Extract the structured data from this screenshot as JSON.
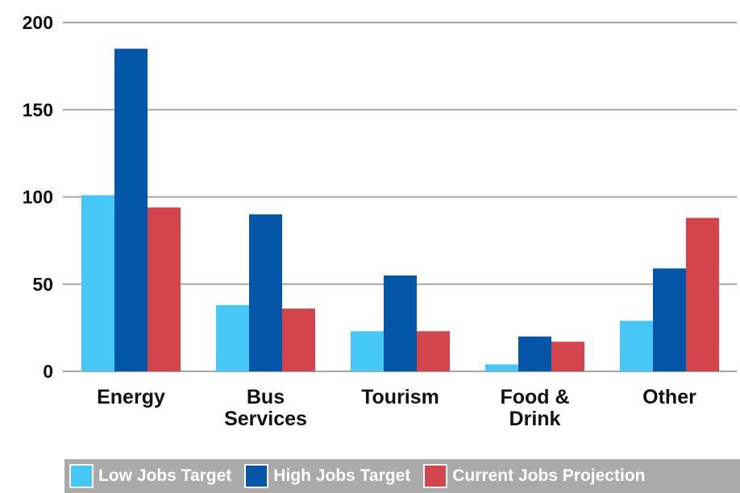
{
  "chart_data": {
    "type": "bar",
    "categories": [
      "Energy",
      "Bus Services",
      "Tourism",
      "Food & Drink",
      "Other"
    ],
    "category_lines": [
      [
        "Energy"
      ],
      [
        "Bus",
        "Services"
      ],
      [
        "Tourism"
      ],
      [
        "Food &",
        "Drink"
      ],
      [
        "Other"
      ]
    ],
    "series": [
      {
        "name": "Low Jobs Target",
        "color": "#45c8f5",
        "values": [
          101,
          38,
          23,
          4,
          29
        ]
      },
      {
        "name": "High Jobs Target",
        "color": "#0457a8",
        "values": [
          185,
          90,
          55,
          20,
          59
        ]
      },
      {
        "name": "Current Jobs Projection",
        "color": "#d3454b",
        "values": [
          94,
          36,
          23,
          17,
          88
        ]
      }
    ],
    "ylim": [
      0,
      200
    ],
    "yticks": [
      0,
      50,
      100,
      150,
      200
    ],
    "grid": true,
    "legend_position": "bottom"
  }
}
